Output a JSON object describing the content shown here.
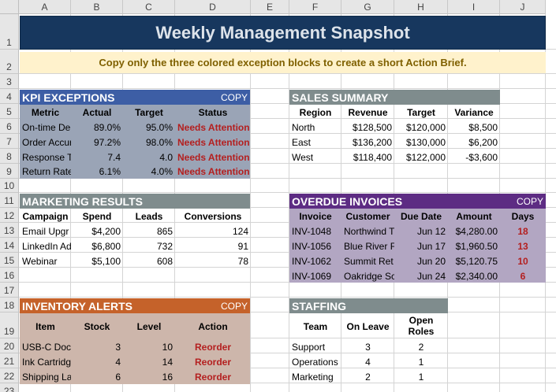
{
  "columns": [
    "A",
    "B",
    "C",
    "D",
    "E",
    "F",
    "G",
    "H",
    "I",
    "J"
  ],
  "rows": [
    "1",
    "2",
    "3",
    "4",
    "5",
    "6",
    "7",
    "8",
    "9",
    "10",
    "11",
    "12",
    "13",
    "14",
    "15",
    "16",
    "17",
    "18",
    "19",
    "20",
    "21",
    "22",
    "23"
  ],
  "title": "Weekly Management Snapshot",
  "instruction": "Copy only the three colored exception blocks to create a short Action Brief.",
  "colors": {
    "title": "#17375e",
    "kpi": "#3d5ea5",
    "gray": "#7f8c8d",
    "overdue": "#5d2c83",
    "inventory": "#c5622a",
    "alert_text": "#b41f1f"
  },
  "kpi": {
    "header": "KPI EXCEPTIONS",
    "copy": "COPY",
    "columns": [
      "Metric",
      "Actual",
      "Target",
      "Status"
    ],
    "rows": [
      {
        "metric": "On-time De",
        "actual": "89.0%",
        "target": "95.0%",
        "status": "Needs Attention"
      },
      {
        "metric": "Order Accur",
        "actual": "97.2%",
        "target": "98.0%",
        "status": "Needs Attention"
      },
      {
        "metric": "Response T",
        "actual": "7.4",
        "target": "4.0",
        "status": "Needs Attention"
      },
      {
        "metric": "Return Rate",
        "actual": "6.1%",
        "target": "4.0%",
        "status": "Needs Attention"
      }
    ]
  },
  "sales": {
    "header": "SALES SUMMARY",
    "columns": [
      "Region",
      "Revenue",
      "Target",
      "Variance"
    ],
    "rows": [
      {
        "region": "North",
        "revenue": "$128,500",
        "target": "$120,000",
        "variance": "$8,500"
      },
      {
        "region": "East",
        "revenue": "$136,200",
        "target": "$130,000",
        "variance": "$6,200"
      },
      {
        "region": "West",
        "revenue": "$118,400",
        "target": "$122,000",
        "variance": "-$3,600"
      }
    ]
  },
  "marketing": {
    "header": "MARKETING RESULTS",
    "columns": [
      "Campaign",
      "Spend",
      "Leads",
      "Conversions"
    ],
    "rows": [
      {
        "campaign": "Email Upgr",
        "spend": "$4,200",
        "leads": "865",
        "conv": "124"
      },
      {
        "campaign": "LinkedIn Ad",
        "spend": "$6,800",
        "leads": "732",
        "conv": "91"
      },
      {
        "campaign": "Webinar",
        "spend": "$5,100",
        "leads": "608",
        "conv": "78"
      }
    ]
  },
  "overdue": {
    "header": "OVERDUE INVOICES",
    "copy": "COPY",
    "columns": [
      "Invoice",
      "Customer",
      "Due Date",
      "Amount",
      "Days"
    ],
    "rows": [
      {
        "invoice": "INV-1048",
        "customer": "Northwind T",
        "due": "Jun 12",
        "amount": "$4,280.00",
        "days": "18"
      },
      {
        "invoice": "INV-1056",
        "customer": "Blue River F",
        "due": "Jun 17",
        "amount": "$1,960.50",
        "days": "13"
      },
      {
        "invoice": "INV-1062",
        "customer": "Summit Ret",
        "due": "Jun 20",
        "amount": "$5,120.75",
        "days": "10"
      },
      {
        "invoice": "INV-1069",
        "customer": "Oakridge Sc",
        "due": "Jun 24",
        "amount": "$2,340.00",
        "days": "6"
      }
    ]
  },
  "inventory": {
    "header": "INVENTORY ALERTS",
    "copy": "COPY",
    "columns": [
      "Item",
      "Stock",
      "Level",
      "Action"
    ],
    "rows": [
      {
        "item": "USB-C Doc",
        "stock": "3",
        "level": "10",
        "action": "Reorder"
      },
      {
        "item": "Ink Cartridg",
        "stock": "4",
        "level": "14",
        "action": "Reorder"
      },
      {
        "item": "Shipping La",
        "stock": "6",
        "level": "16",
        "action": "Reorder"
      }
    ]
  },
  "staffing": {
    "header": "STAFFING",
    "columns": [
      "Team",
      "On Leave",
      "Open",
      "Roles"
    ],
    "rows": [
      {
        "team": "Support",
        "leave": "3",
        "open": "2"
      },
      {
        "team": "Operations",
        "leave": "4",
        "open": "1"
      },
      {
        "team": "Marketing",
        "leave": "2",
        "open": "1"
      }
    ]
  }
}
